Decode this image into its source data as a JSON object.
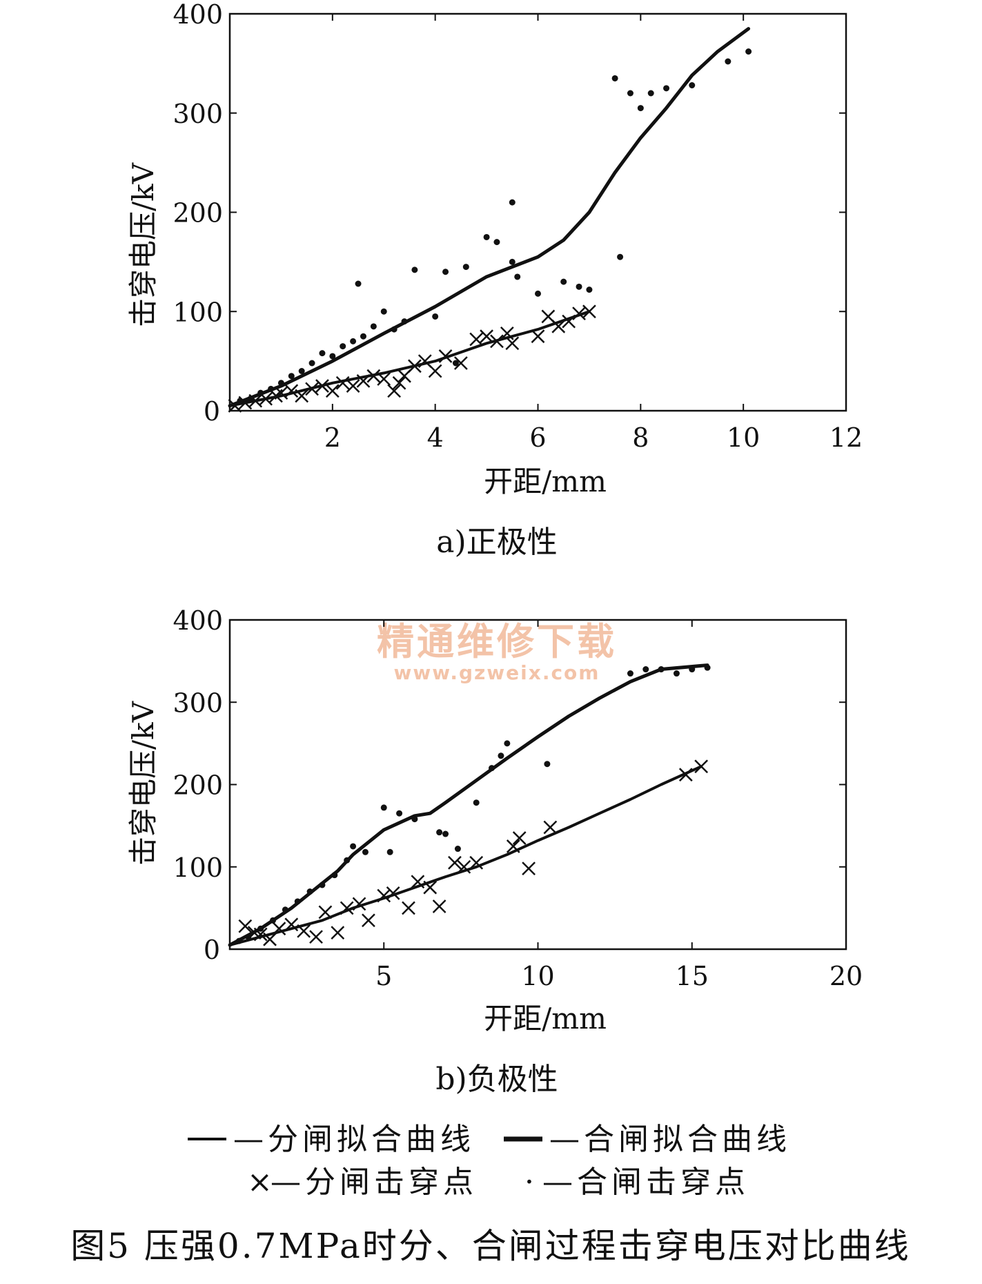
{
  "figure_caption": "图5 压强0.7MPa时分、合闸过程击穿电压对比曲线",
  "watermark": {
    "text": "精通维修下载",
    "url": "www.gzweix.com",
    "color": "#f3c3a8"
  },
  "legend": {
    "row1": [
      {
        "marker": "line",
        "text": "—分闸拟合曲线"
      },
      {
        "marker": "line-bold",
        "text": "—合闸拟合曲线"
      }
    ],
    "row2": [
      {
        "marker": "×",
        "text": "—分闸击穿点"
      },
      {
        "marker": "·",
        "text": "—合闸击穿点"
      }
    ]
  },
  "chart_data": [
    {
      "type": "scatter",
      "caption": "a)正极性",
      "xlabel": "开距/mm",
      "ylabel": "击穿电压/kV",
      "xlim": [
        0,
        12
      ],
      "ylim": [
        0,
        400
      ],
      "xticks": [
        2,
        4,
        6,
        8,
        10,
        12
      ],
      "yticks": [
        0,
        100,
        200,
        300,
        400
      ],
      "grid": false,
      "series": [
        {
          "name": "分闸拟合曲线",
          "kind": "line",
          "x": [
            0,
            1,
            2,
            3,
            4,
            5,
            6,
            7
          ],
          "y": [
            5,
            15,
            28,
            38,
            50,
            68,
            82,
            100
          ]
        },
        {
          "name": "合闸拟合曲线",
          "kind": "line",
          "x": [
            0,
            1,
            2,
            3,
            4,
            5,
            6,
            6.5,
            7,
            7.5,
            8,
            8.5,
            9,
            9.5,
            10.1
          ],
          "y": [
            5,
            25,
            50,
            78,
            105,
            135,
            155,
            172,
            200,
            240,
            275,
            305,
            338,
            362,
            385
          ]
        },
        {
          "name": "分闸击穿点",
          "kind": "x",
          "x": [
            0.1,
            0.3,
            0.5,
            0.7,
            0.9,
            1.0,
            1.2,
            1.4,
            1.6,
            1.8,
            2.0,
            2.2,
            2.4,
            2.6,
            2.8,
            3.0,
            3.2,
            3.3,
            3.4,
            3.6,
            3.8,
            4.0,
            4.2,
            4.5,
            4.8,
            5.0,
            5.2,
            5.4,
            5.5,
            6.0,
            6.2,
            6.4,
            6.6,
            6.8,
            7.0
          ],
          "y": [
            5,
            8,
            10,
            12,
            15,
            18,
            20,
            15,
            22,
            25,
            20,
            28,
            25,
            30,
            35,
            32,
            20,
            28,
            35,
            45,
            50,
            40,
            55,
            48,
            72,
            75,
            70,
            78,
            68,
            75,
            95,
            85,
            90,
            98,
            100
          ]
        },
        {
          "name": "合闸击穿点",
          "kind": "dot",
          "x": [
            0.2,
            0.4,
            0.6,
            0.8,
            1.0,
            1.2,
            1.4,
            1.6,
            1.8,
            2.0,
            2.2,
            2.4,
            2.5,
            2.6,
            2.8,
            3.0,
            3.2,
            3.4,
            3.6,
            4.0,
            4.2,
            4.4,
            4.6,
            5.0,
            5.2,
            5.5,
            5.5,
            5.6,
            6.0,
            6.5,
            6.8,
            7.0,
            7.5,
            7.6,
            7.8,
            8.0,
            8.2,
            8.5,
            9.0,
            9.7,
            10.1
          ],
          "y": [
            10,
            12,
            18,
            22,
            28,
            35,
            40,
            48,
            58,
            55,
            65,
            70,
            128,
            75,
            85,
            100,
            82,
            90,
            142,
            95,
            140,
            48,
            145,
            175,
            170,
            150,
            210,
            135,
            118,
            130,
            125,
            122,
            335,
            155,
            320,
            305,
            320,
            325,
            328,
            352,
            362
          ]
        }
      ]
    },
    {
      "type": "scatter",
      "caption": "b)负极性",
      "xlabel": "开距/mm",
      "ylabel": "击穿电压/kV",
      "xlim": [
        0,
        20
      ],
      "ylim": [
        0,
        400
      ],
      "xticks": [
        5,
        10,
        15,
        20
      ],
      "yticks": [
        0,
        100,
        200,
        300,
        400
      ],
      "grid": false,
      "series": [
        {
          "name": "分闸拟合曲线",
          "kind": "line",
          "x": [
            0,
            1,
            2,
            3,
            4,
            5,
            6,
            7,
            8,
            9,
            10,
            11,
            12,
            13,
            14,
            15.3
          ],
          "y": [
            5,
            15,
            25,
            35,
            50,
            62,
            75,
            88,
            100,
            115,
            132,
            148,
            165,
            182,
            200,
            222
          ]
        },
        {
          "name": "合闸拟合曲线",
          "kind": "line",
          "x": [
            0,
            1,
            2,
            3,
            3.5,
            4,
            5,
            6,
            6.5,
            7,
            8,
            9,
            10,
            11,
            12,
            13,
            14,
            15.5
          ],
          "y": [
            5,
            25,
            50,
            80,
            95,
            115,
            145,
            162,
            165,
            178,
            205,
            232,
            258,
            283,
            305,
            325,
            340,
            345
          ]
        },
        {
          "name": "分闸击穿点",
          "kind": "x",
          "x": [
            0.5,
            0.8,
            1.0,
            1.3,
            1.6,
            2.0,
            2.4,
            2.8,
            3.1,
            3.5,
            3.8,
            4.2,
            4.5,
            5.0,
            5.3,
            5.8,
            6.1,
            6.5,
            6.8,
            7.3,
            7.6,
            8.0,
            9.2,
            9.4,
            9.7,
            10.4,
            14.8,
            15.3
          ],
          "y": [
            28,
            20,
            18,
            12,
            25,
            30,
            22,
            15,
            45,
            20,
            50,
            55,
            35,
            65,
            68,
            50,
            82,
            75,
            52,
            105,
            100,
            105,
            125,
            135,
            98,
            148,
            212,
            222
          ]
        },
        {
          "name": "合闸击穿点",
          "kind": "dot",
          "x": [
            0.3,
            0.6,
            1.0,
            1.4,
            1.8,
            2.2,
            2.6,
            3.0,
            3.4,
            3.8,
            4.0,
            4.4,
            5.0,
            5.2,
            5.5,
            6.0,
            6.8,
            7.0,
            7.4,
            8.0,
            8.5,
            8.8,
            9.0,
            10.3,
            13.0,
            13.5,
            14.0,
            14.5,
            15.0,
            15.5
          ],
          "y": [
            10,
            15,
            25,
            35,
            48,
            58,
            70,
            78,
            90,
            108,
            125,
            118,
            172,
            118,
            165,
            158,
            142,
            140,
            122,
            178,
            220,
            235,
            250,
            225,
            335,
            340,
            340,
            335,
            340,
            342
          ]
        }
      ]
    }
  ]
}
